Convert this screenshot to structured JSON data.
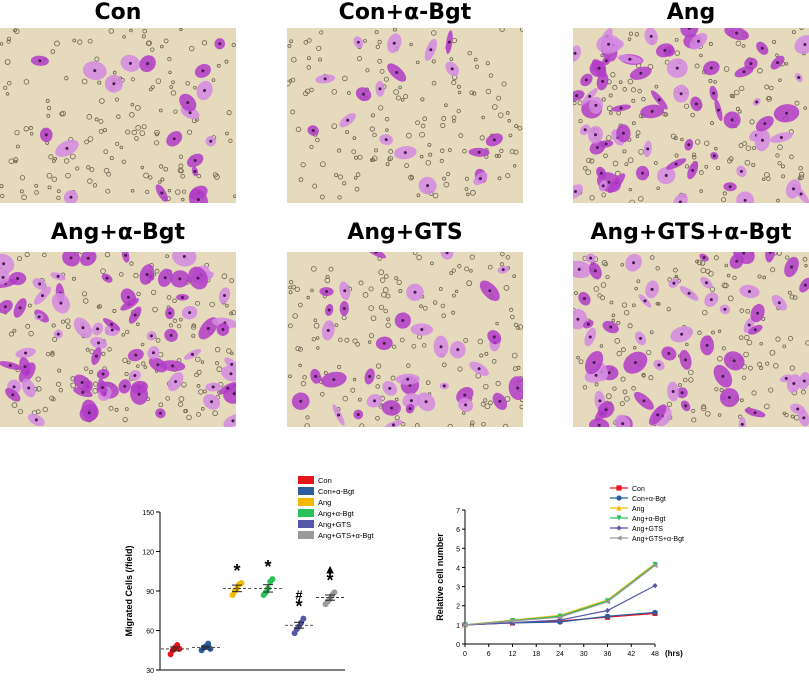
{
  "figure": {
    "panels": [
      {
        "title": "Con",
        "density": 20,
        "seed": 11
      },
      {
        "title": "Con+α-Bgt",
        "density": 18,
        "seed": 23
      },
      {
        "title": "Ang",
        "density": 70,
        "seed": 37
      },
      {
        "title": "Ang+α-Bgt",
        "density": 80,
        "seed": 41
      },
      {
        "title": "Ang+GTS",
        "density": 38,
        "seed": 53
      },
      {
        "title": "Ang+GTS+α-Bgt",
        "density": 60,
        "seed": 67
      }
    ],
    "colors": {
      "stain": "#b23cc8",
      "stain_light": "#d48ae0",
      "background": "#e6dabd"
    }
  },
  "chart_data": [
    {
      "type": "scatter",
      "title": "",
      "xlabel": "",
      "ylabel": "Migrated Cells (/field)",
      "ylim": [
        30,
        150
      ],
      "yticks": [
        "30",
        "60",
        "90",
        "120",
        "150"
      ],
      "categories": [
        "Con",
        "Con+α-Bgt",
        "Ang",
        "Ang+α-Bgt",
        "Ang+GTS",
        "Ang+GTS+α-Bgt"
      ],
      "colors": [
        "#e8141c",
        "#2a5d9e",
        "#f5b800",
        "#27c25a",
        "#5757a8",
        "#9a9a9a"
      ],
      "legend": [
        "Con",
        "Con+α-Bgt",
        "Ang",
        "Ang+α-Bgt",
        "Ang+GTS",
        "Ang+GTS+α-Bgt"
      ],
      "legend_position": "top-right",
      "series": [
        {
          "name": "Con",
          "values": [
            42,
            45,
            47,
            49,
            46
          ],
          "mean": 46,
          "sem": 1.5,
          "annotations": []
        },
        {
          "name": "Con+α-Bgt",
          "values": [
            45,
            47,
            48,
            50,
            46
          ],
          "mean": 47,
          "sem": 1.2,
          "annotations": []
        },
        {
          "name": "Ang",
          "values": [
            87,
            90,
            92,
            95,
            96
          ],
          "mean": 92,
          "sem": 2.5,
          "annotations": [
            "*"
          ]
        },
        {
          "name": "Ang+α-Bgt",
          "values": [
            87,
            89,
            92,
            97,
            99
          ],
          "mean": 92,
          "sem": 2.8,
          "annotations": [
            "*"
          ]
        },
        {
          "name": "Ang+GTS",
          "values": [
            58,
            61,
            63,
            66,
            69
          ],
          "mean": 64,
          "sem": 2.2,
          "annotations": [
            "*",
            "#"
          ]
        },
        {
          "name": "Ang+GTS+α-Bgt",
          "values": [
            80,
            82,
            84,
            87,
            89
          ],
          "mean": 85,
          "sem": 2,
          "annotations": [
            "*",
            "▲"
          ]
        }
      ]
    },
    {
      "type": "line",
      "title": "",
      "xlabel": "(hrs)",
      "ylabel": "Relative cell number",
      "x": [
        0,
        12,
        24,
        36,
        48
      ],
      "xticks": [
        "0",
        "6",
        "12",
        "18",
        "24",
        "30",
        "36",
        "42",
        "48"
      ],
      "yticks": [
        "0",
        "1",
        "2",
        "3",
        "4",
        "5",
        "6",
        "7"
      ],
      "xlim": [
        0,
        48
      ],
      "ylim": [
        0,
        7
      ],
      "legend_position": "top-right",
      "series": [
        {
          "name": "Con",
          "color": "#e8141c",
          "marker": "square",
          "values": [
            1.0,
            1.1,
            1.2,
            1.4,
            1.6
          ]
        },
        {
          "name": "Con+α-Bgt",
          "color": "#2a5d9e",
          "marker": "circle",
          "values": [
            1.0,
            1.1,
            1.15,
            1.45,
            1.65
          ]
        },
        {
          "name": "Ang",
          "color": "#f5b800",
          "marker": "triangle-up",
          "values": [
            1.0,
            1.25,
            1.5,
            2.3,
            4.2
          ]
        },
        {
          "name": "Ang+α-Bgt",
          "color": "#27c25a",
          "marker": "triangle-down",
          "values": [
            1.0,
            1.22,
            1.45,
            2.25,
            4.15
          ]
        },
        {
          "name": "Ang+GTS",
          "color": "#5757a8",
          "marker": "diamond",
          "values": [
            1.0,
            1.12,
            1.25,
            1.75,
            3.05
          ]
        },
        {
          "name": "Ang+GTS+α-Bgt",
          "color": "#9a9a9a",
          "marker": "triangle-left",
          "values": [
            1.0,
            1.2,
            1.4,
            2.2,
            4.1
          ]
        }
      ]
    }
  ]
}
